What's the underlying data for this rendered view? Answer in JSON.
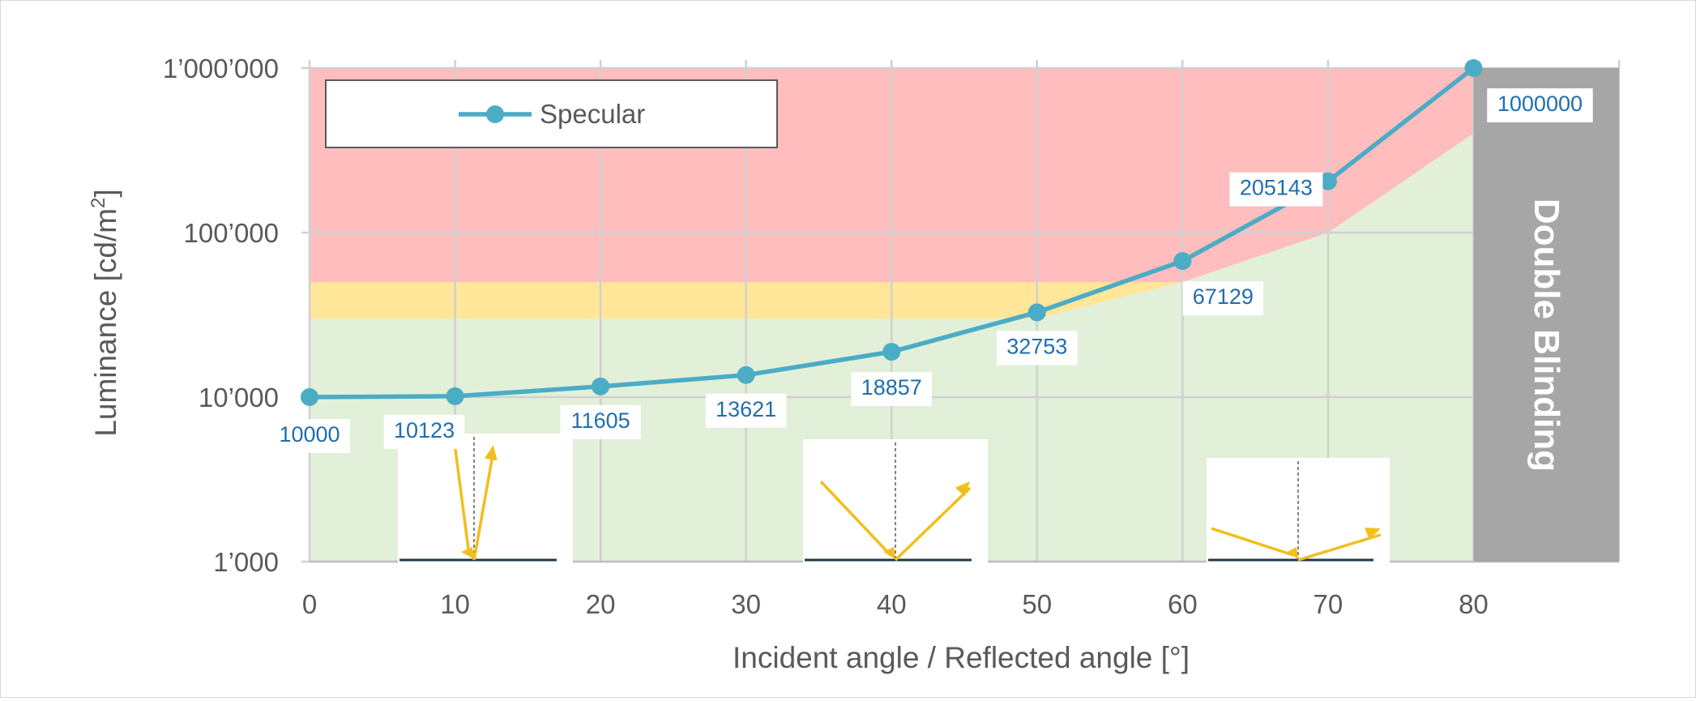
{
  "chart_data": {
    "type": "line",
    "title": "",
    "xlabel": "Incident angle / Reflected angle [°]",
    "ylabel_main": "Luminance [cd/m",
    "ylabel_sup": "2",
    "ylabel_end": "]",
    "y_scale": "log",
    "xlim": [
      0,
      90
    ],
    "ylim": [
      1000,
      1000000
    ],
    "grid": true,
    "legend_position": "top-left",
    "x_ticks": [
      0,
      10,
      20,
      30,
      40,
      50,
      60,
      70,
      80
    ],
    "x_tick_labels": [
      "0",
      "10",
      "20",
      "30",
      "40",
      "50",
      "60",
      "70",
      "80"
    ],
    "y_ticks": [
      1000,
      10000,
      100000,
      1000000
    ],
    "y_tick_labels": [
      "1’000",
      "10’000",
      "100’000",
      "1’000’000"
    ],
    "series": [
      {
        "name": "Specular",
        "color": "#4BACC6",
        "x": [
          0,
          10,
          20,
          30,
          40,
          50,
          60,
          70,
          80
        ],
        "values": [
          10000,
          10123,
          11605,
          13621,
          18857,
          32753,
          67129,
          205143,
          1000000
        ],
        "labels": [
          "10000",
          "10123",
          "11605",
          "13621",
          "18857",
          "32753",
          "67129",
          "205143",
          "1000000"
        ]
      }
    ],
    "zones": [
      {
        "name": "green",
        "color": "#E2F0D9",
        "upper": [
          [
            0,
            30000
          ],
          [
            50,
            30000
          ],
          [
            60,
            50000
          ],
          [
            70,
            100000
          ],
          [
            80,
            400000
          ]
        ]
      },
      {
        "name": "yellow",
        "color": "#FFE699",
        "upper": [
          [
            0,
            50000
          ],
          [
            50,
            50000
          ],
          [
            60,
            50000
          ],
          [
            70,
            100000
          ],
          [
            80,
            400000
          ]
        ]
      },
      {
        "name": "red",
        "color": "#FFBDBD",
        "upper": [
          [
            0,
            1000000
          ],
          [
            80,
            1000000
          ]
        ]
      }
    ],
    "blocked_region": {
      "label": "Double Blinding",
      "x_from": 80,
      "x_to": 90,
      "color": "#A6A6A6"
    },
    "reflection_insets": [
      {
        "name": "inset-near-normal",
        "angle_deg": 10
      },
      {
        "name": "inset-medium",
        "angle_deg": 45
      },
      {
        "name": "inset-grazing",
        "angle_deg": 70
      }
    ],
    "colors": {
      "label_text": "#1F6EAF",
      "axis_text": "#595959",
      "grid": "#D0D0D0",
      "arrow": "#F2BE1A",
      "surface": "#1F3A4D"
    }
  }
}
